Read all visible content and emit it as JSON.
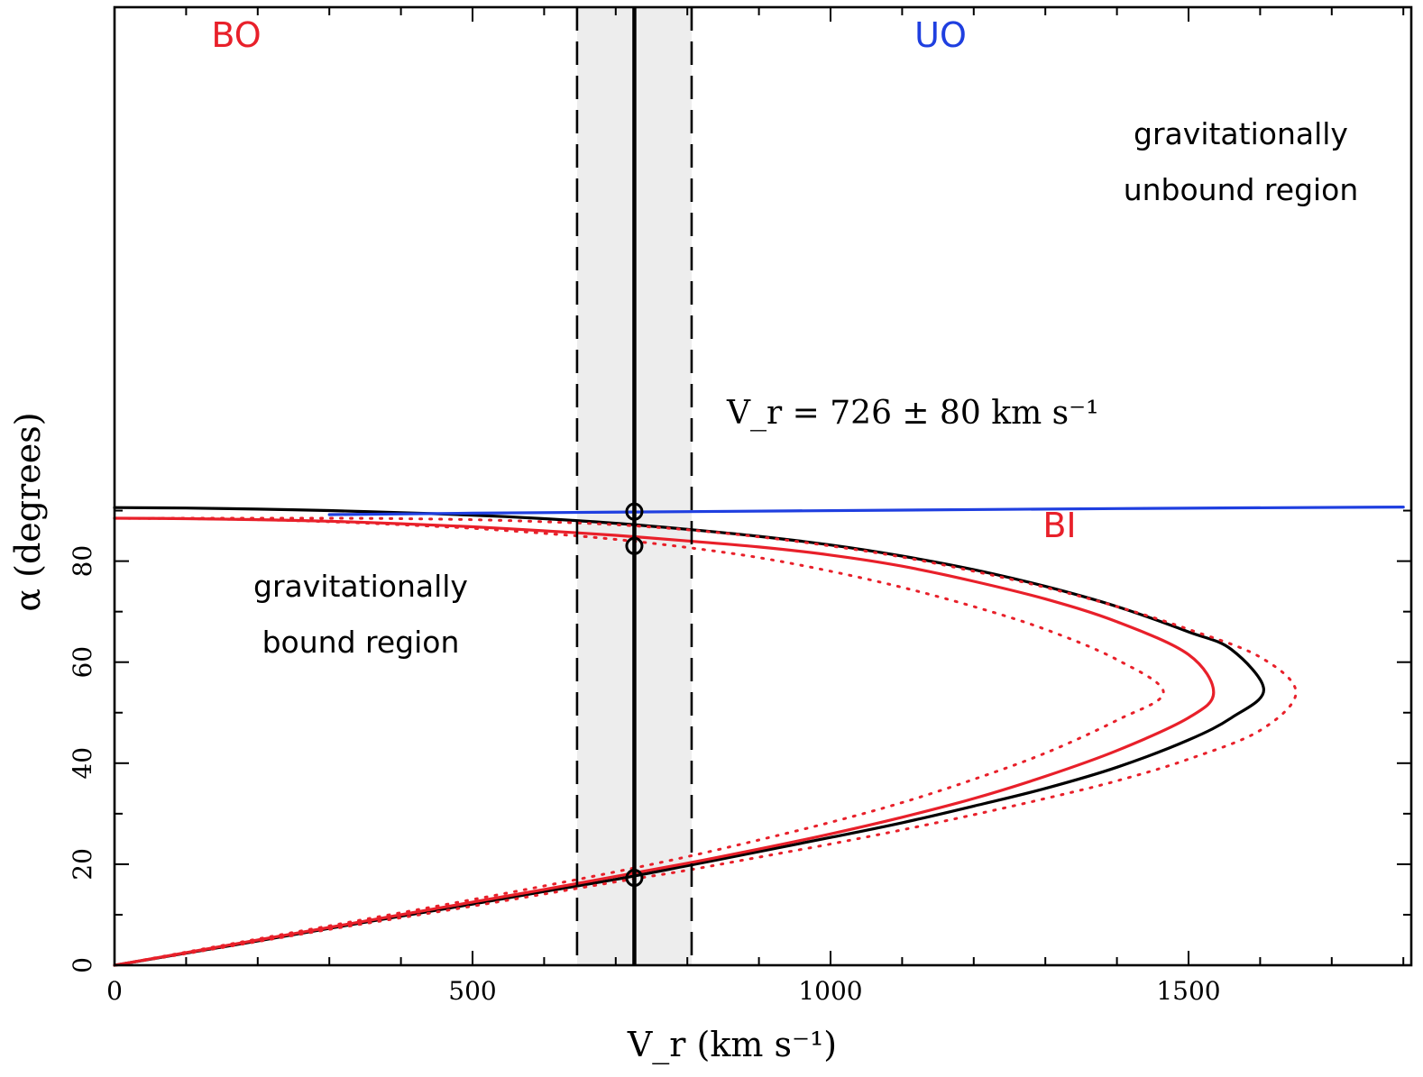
{
  "chart_data": {
    "type": "line",
    "xlabel": "V_r (km s⁻¹)",
    "ylabel": "α (degrees)",
    "xlim": [
      0,
      1800
    ],
    "ylim": [
      0,
      95
    ],
    "x_ticks_major": [
      0,
      500,
      1000,
      1500
    ],
    "x_ticks_minor_step": 100,
    "y_ticks_major": [
      0,
      20,
      40,
      60,
      80
    ],
    "y_ticks_minor_step": 10,
    "grid": false,
    "band": {
      "center": 726,
      "low": 646,
      "high": 806,
      "fill": "#ededed"
    },
    "measurement_annotation": "V_r = 726 ± 80 km s⁻¹",
    "region_labels": {
      "bound": [
        "gravitationally",
        "bound region"
      ],
      "unbound": [
        "gravitationally",
        "unbound region"
      ]
    },
    "curve_labels": {
      "BO": {
        "text": "BO",
        "color": "#e8202a"
      },
      "UO": {
        "text": "UO",
        "color": "#1f3fe0"
      },
      "BI": {
        "text": "BI",
        "color": "#e8202a"
      }
    },
    "series": [
      {
        "style": "solid",
        "color": "#000000",
        "x": [
          0,
          100,
          200,
          300,
          400,
          500,
          600,
          700,
          800,
          900,
          1000,
          1100,
          1200,
          1300,
          1400,
          1500,
          1560,
          1605,
          1560,
          1500,
          1400,
          1300,
          1200,
          1100,
          1000,
          900,
          800,
          700,
          600,
          500,
          400,
          300,
          200,
          100,
          0
        ],
        "y": [
          0,
          2.4,
          4.8,
          7.3,
          9.7,
          12.1,
          14.6,
          17.0,
          19.7,
          22.5,
          25.3,
          28.2,
          31.5,
          35.0,
          39.2,
          44.6,
          49.0,
          54.5,
          62.5,
          66.0,
          71.0,
          75.0,
          78.3,
          81.0,
          83.2,
          84.9,
          86.3,
          87.5,
          88.4,
          89.1,
          89.6,
          90.0,
          90.3,
          90.5,
          90.6
        ]
      },
      {
        "style": "solid",
        "color": "#e8202a",
        "x": [
          0,
          100,
          200,
          300,
          400,
          500,
          600,
          700,
          800,
          900,
          1000,
          1100,
          1200,
          1300,
          1400,
          1500,
          1535,
          1500,
          1400,
          1300,
          1200,
          1100,
          1000,
          900,
          800,
          700,
          600,
          500,
          400,
          300,
          200,
          100,
          0
        ],
        "y": [
          0,
          2.5,
          5.0,
          7.5,
          10.0,
          12.5,
          15.0,
          17.6,
          20.2,
          23.0,
          26.0,
          29.3,
          33.0,
          37.4,
          42.5,
          49.0,
          54.0,
          61.5,
          68.0,
          72.5,
          76.0,
          79.0,
          81.2,
          82.8,
          84.0,
          85.1,
          86.0,
          86.8,
          87.4,
          87.9,
          88.2,
          88.4,
          88.5
        ]
      },
      {
        "style": "dotted",
        "color": "#e8202a",
        "x": [
          0,
          100,
          200,
          300,
          400,
          500,
          600,
          700,
          800,
          900,
          1000,
          1100,
          1200,
          1300,
          1400,
          1465,
          1400,
          1300,
          1200,
          1100,
          1000,
          900,
          800,
          700,
          600,
          500,
          400,
          300,
          200,
          100,
          0
        ],
        "y": [
          0,
          2.6,
          5.2,
          7.8,
          10.4,
          13.0,
          15.7,
          18.5,
          21.5,
          24.8,
          28.3,
          32.2,
          36.8,
          42.0,
          48.5,
          54.0,
          60.5,
          66.5,
          71.0,
          74.8,
          78.0,
          80.7,
          82.7,
          84.3,
          85.5,
          86.5,
          87.2,
          87.8,
          88.2,
          88.4,
          88.5
        ]
      },
      {
        "style": "dotted",
        "color": "#e8202a",
        "x": [
          0,
          100,
          200,
          300,
          400,
          500,
          600,
          700,
          800,
          900,
          1000,
          1100,
          1200,
          1300,
          1400,
          1500,
          1600,
          1650,
          1600,
          1500,
          1400,
          1300,
          1200,
          1100,
          1000,
          900,
          800,
          700,
          600,
          500,
          400,
          300,
          200,
          100,
          0
        ],
        "y": [
          0,
          2.3,
          4.7,
          7.1,
          9.4,
          11.7,
          14.1,
          16.5,
          18.8,
          21.4,
          24.0,
          26.8,
          29.8,
          33.0,
          36.5,
          40.8,
          46.5,
          54.0,
          61.0,
          66.5,
          71.0,
          74.8,
          78.0,
          80.8,
          83.0,
          84.8,
          86.2,
          87.2,
          87.8,
          88.2,
          88.4,
          88.5,
          88.5,
          88.5,
          88.5
        ]
      },
      {
        "style": "solid",
        "color": "#1f3fe0",
        "x": [
          300,
          500,
          800,
          1100,
          1400,
          1800
        ],
        "y": [
          89.2,
          89.5,
          89.8,
          90.1,
          90.4,
          90.7
        ]
      }
    ],
    "markers": [
      {
        "x": 726,
        "y": 89.8
      },
      {
        "x": 726,
        "y": 83.0
      },
      {
        "x": 726,
        "y": 17.3
      }
    ]
  }
}
